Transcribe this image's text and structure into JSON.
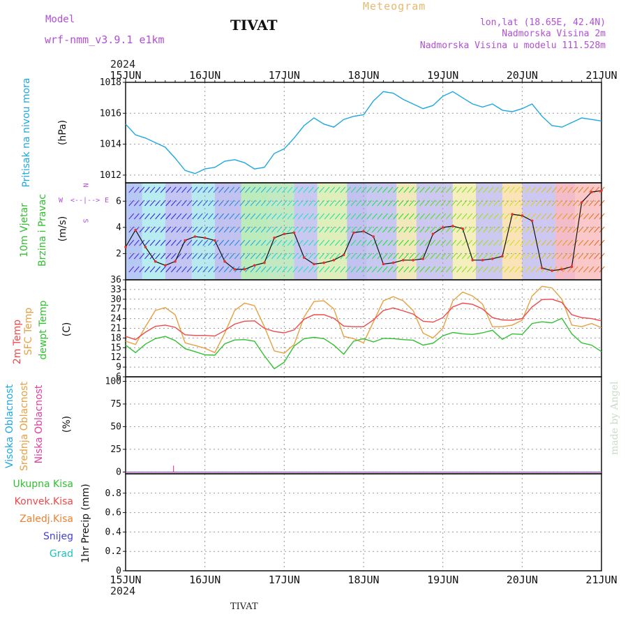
{
  "header": {
    "model_label": "Model",
    "model_name": "wrf-nmm_v3.9.1 e1km",
    "station": "TIVAT",
    "meteogram": "Meteogram",
    "lonlat": "lon,lat (18.65E, 42.4N)",
    "altitude": "Nadmorska Visina 2m",
    "model_altitude": "Nadmorska Visina u modelu 111.528m"
  },
  "time_axis": {
    "year": "2024",
    "dates": [
      "15JUN",
      "16JUN",
      "17JUN",
      "18JUN",
      "19JUN",
      "20JUN",
      "21JUN"
    ]
  },
  "footer": {
    "station": "TIVAT",
    "credit": "made by Angel"
  },
  "panels": {
    "pressure": {
      "label": "Pritisak na nivou mora",
      "unit": "(hPa)",
      "color": "#1ea7e1"
    },
    "wind": {
      "label1": "10m Vjetar",
      "label2": "Brzina i Pravac",
      "unit": "(m/s)",
      "compass": {
        "w": "W",
        "e": "E",
        "n": "N",
        "s": "S",
        "arrow_h": "<--|-->"
      }
    },
    "temp": {
      "label_t2m": "2m Temp",
      "label_sfc": "SFC Temp",
      "label_dew": "dewpt Temp",
      "unit": "(C)",
      "colors": {
        "t2m": "#f04848",
        "sfc": "#e8a040",
        "dew": "#30c030"
      }
    },
    "cloud": {
      "label_high": "Visoka Oblacnost",
      "label_mid": "Srednja Oblacnost",
      "label_low": "Niska Oblacnost",
      "unit": "(%)",
      "colors": {
        "high": "#1ea7e1",
        "mid": "#e8a040",
        "low": "#e040a0"
      }
    },
    "precip": {
      "legend": [
        "Ukupna Kisa",
        "Konvek.Kisa",
        "Zaledj.Kisa",
        "Snijeg",
        "Grad"
      ],
      "legend_colors": [
        "#30c030",
        "#f04848",
        "#f08030",
        "#4040e0",
        "#20c0c0"
      ],
      "unit": "1hr Precip (mm)"
    }
  },
  "chart_data": [
    {
      "type": "line",
      "title": "Pritisak na nivou mora",
      "ylabel": "(hPa)",
      "ylim": [
        1011.5,
        1018
      ],
      "yticks": [
        1012,
        1014,
        1016,
        1018
      ],
      "x_hours": [
        0,
        3,
        6,
        9,
        12,
        15,
        18,
        21,
        24,
        27,
        30,
        33,
        36,
        39,
        42,
        45,
        48,
        51,
        54,
        57,
        60,
        63,
        66,
        69,
        72,
        75,
        78,
        81,
        84,
        87,
        90,
        93,
        96,
        99,
        102,
        105,
        108,
        111,
        114,
        117,
        120,
        123,
        126,
        129,
        132,
        135,
        138,
        141,
        144
      ],
      "series": [
        {
          "name": "Pritisak na nivou mora",
          "values": [
            1015.3,
            1014.6,
            1014.4,
            1014.1,
            1013.8,
            1013.1,
            1012.3,
            1012.1,
            1012.4,
            1012.5,
            1012.9,
            1013.0,
            1012.8,
            1012.4,
            1012.5,
            1013.4,
            1013.7,
            1014.4,
            1015.2,
            1015.7,
            1015.3,
            1015.1,
            1015.6,
            1015.8,
            1015.9,
            1016.8,
            1017.4,
            1017.3,
            1016.9,
            1016.6,
            1016.3,
            1016.5,
            1017.1,
            1017.4,
            1017.0,
            1016.6,
            1016.4,
            1016.6,
            1016.2,
            1016.1,
            1016.3,
            1016.6,
            1015.8,
            1015.2,
            1015.1,
            1015.4,
            1015.7,
            1015.6,
            1015.5
          ]
        }
      ]
    },
    {
      "type": "line",
      "title": "10m Vjetar Brzina i Pravac",
      "ylabel": "(m/s)",
      "ylim": [
        0,
        7.4
      ],
      "yticks": [
        2,
        4,
        6
      ],
      "x_hours": [
        0,
        3,
        6,
        9,
        12,
        15,
        18,
        21,
        24,
        27,
        30,
        33,
        36,
        39,
        42,
        45,
        48,
        51,
        54,
        57,
        60,
        63,
        66,
        69,
        72,
        75,
        78,
        81,
        84,
        87,
        90,
        93,
        96,
        99,
        102,
        105,
        108,
        111,
        114,
        117,
        120,
        123,
        126,
        129,
        132,
        135,
        138,
        141,
        144
      ],
      "series": [
        {
          "name": "wind speed",
          "values": [
            2.5,
            3.8,
            2.5,
            1.4,
            1.1,
            1.4,
            3.0,
            3.3,
            3.2,
            3.0,
            1.4,
            0.8,
            0.8,
            1.1,
            1.3,
            3.2,
            3.5,
            3.6,
            1.7,
            1.2,
            1.3,
            1.5,
            1.9,
            3.6,
            3.7,
            3.3,
            1.2,
            1.3,
            1.5,
            1.5,
            1.6,
            3.5,
            4.0,
            4.1,
            3.9,
            1.5,
            1.5,
            1.6,
            1.8,
            5.0,
            4.9,
            4.5,
            0.9,
            0.7,
            0.8,
            1.0,
            5.9,
            6.7,
            6.8
          ]
        }
      ]
    },
    {
      "type": "line",
      "title": "2m Temp / SFC Temp / dewpt Temp",
      "ylabel": "(C)",
      "ylim": [
        6,
        36
      ],
      "yticks": [
        6,
        9,
        12,
        15,
        18,
        21,
        24,
        27,
        30,
        33,
        36
      ],
      "x_hours": [
        0,
        3,
        6,
        9,
        12,
        15,
        18,
        21,
        24,
        27,
        30,
        33,
        36,
        39,
        42,
        45,
        48,
        51,
        54,
        57,
        60,
        63,
        66,
        69,
        72,
        75,
        78,
        81,
        84,
        87,
        90,
        93,
        96,
        99,
        102,
        105,
        108,
        111,
        114,
        117,
        120,
        123,
        126,
        129,
        132,
        135,
        138,
        141,
        144
      ],
      "series": [
        {
          "name": "2m Temp",
          "values": [
            18.5,
            17.5,
            19.8,
            21.6,
            22.0,
            21.3,
            19.0,
            18.8,
            18.8,
            18.6,
            20.3,
            22.3,
            23.2,
            23.3,
            21.0,
            20.0,
            19.6,
            20.5,
            23.8,
            25.2,
            25.2,
            24.1,
            21.7,
            21.5,
            21.5,
            23.6,
            26.5,
            27.3,
            26.4,
            25.4,
            23.2,
            22.9,
            24.3,
            27.6,
            28.8,
            28.4,
            27.0,
            24.3,
            23.6,
            23.5,
            24.0,
            27.6,
            29.9,
            30.0,
            29.0,
            25.2,
            24.3,
            24.0,
            23.3
          ]
        },
        {
          "name": "SFC Temp",
          "values": [
            17.0,
            16.0,
            21.5,
            26.5,
            27.4,
            25.2,
            16.5,
            15.7,
            14.8,
            13.5,
            19.5,
            26.5,
            28.8,
            28.0,
            21.5,
            14.0,
            13.3,
            16.0,
            24.5,
            29.3,
            29.5,
            27.0,
            18.5,
            17.8,
            16.5,
            23.0,
            29.5,
            30.8,
            29.5,
            26.5,
            19.5,
            18.0,
            21.0,
            29.5,
            32.2,
            31.0,
            28.5,
            21.5,
            21.5,
            22.0,
            23.5,
            31.0,
            34.0,
            33.5,
            30.0,
            22.0,
            21.5,
            22.5,
            21.2
          ]
        },
        {
          "name": "dewpt Temp",
          "values": [
            15.8,
            13.5,
            16.1,
            17.8,
            18.5,
            17.2,
            14.7,
            13.8,
            12.8,
            12.7,
            16.2,
            17.4,
            17.5,
            17.0,
            12.5,
            8.5,
            10.5,
            15.5,
            17.8,
            18.2,
            17.8,
            15.8,
            13.0,
            17.0,
            17.8,
            16.8,
            17.9,
            17.8,
            17.5,
            17.3,
            15.8,
            16.4,
            18.7,
            19.7,
            19.3,
            19.1,
            19.6,
            20.4,
            17.6,
            19.3,
            19.1,
            22.5,
            23.0,
            22.7,
            24.1,
            19.3,
            16.5,
            15.8,
            13.8
          ]
        }
      ]
    },
    {
      "type": "line",
      "title": "Visoka / Srednja / Niska Oblacnost",
      "ylabel": "(%)",
      "ylim": [
        -2,
        105
      ],
      "yticks": [
        0,
        25,
        50,
        75,
        100
      ],
      "series": [
        {
          "name": "Visoka Oblacnost",
          "values": [
            0,
            0,
            0,
            0,
            0,
            0,
            0
          ]
        },
        {
          "name": "Srednja Oblacnost",
          "values": [
            0,
            0,
            0,
            0,
            0,
            0,
            0
          ]
        },
        {
          "name": "Niska Oblacnost",
          "spike_hour": 14.5,
          "spike_value": 7,
          "values": [
            0,
            0,
            0,
            0,
            0,
            0,
            0
          ]
        }
      ]
    },
    {
      "type": "bar",
      "title": "1hr Precip (mm)",
      "ylabel": "1hr Precip (mm)",
      "ylim": [
        0,
        1.0
      ],
      "yticks": [
        0,
        0.2,
        0.4,
        0.6,
        0.8
      ],
      "series": [
        {
          "name": "Ukupna Kisa",
          "values": [
            0,
            0,
            0,
            0,
            0,
            0,
            0
          ]
        }
      ]
    }
  ]
}
